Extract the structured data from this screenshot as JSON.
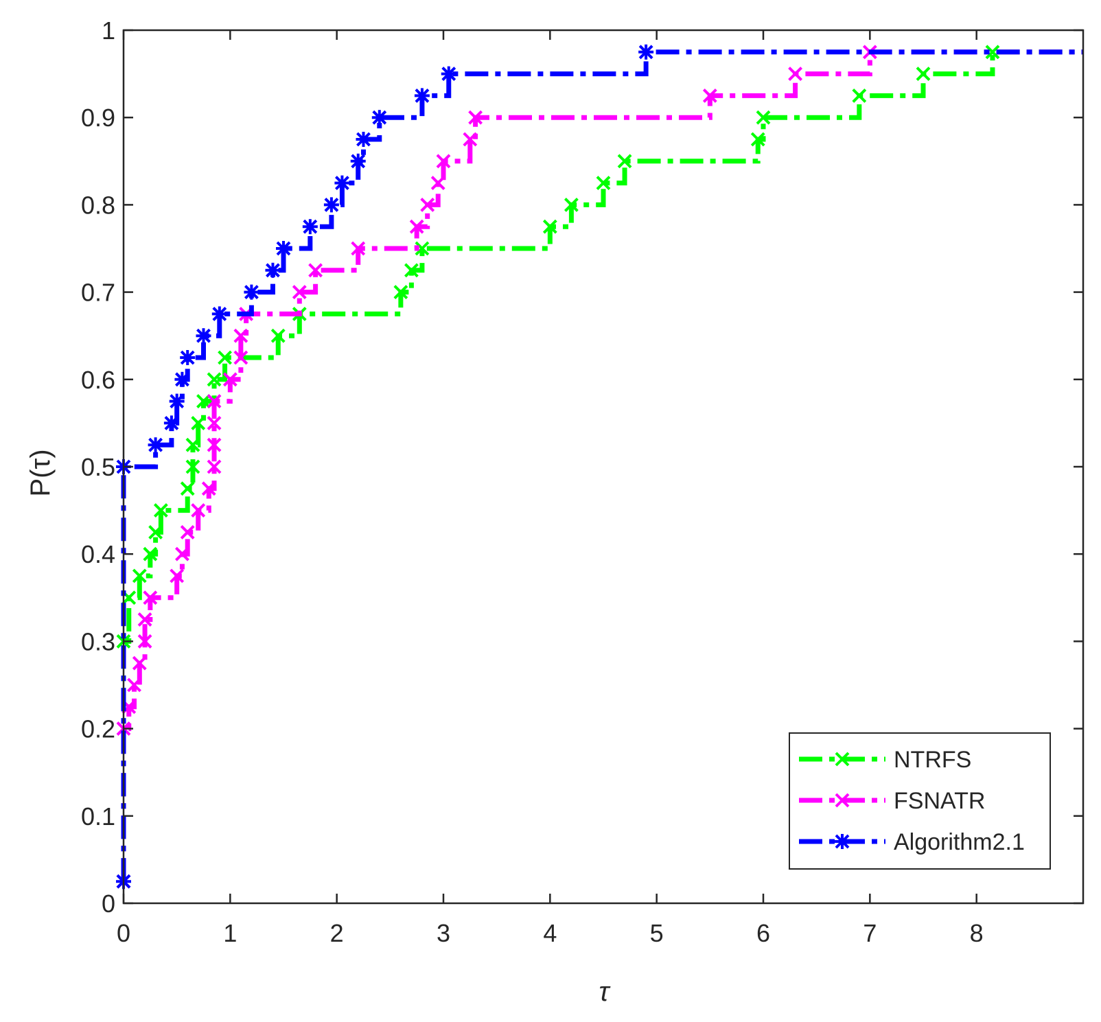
{
  "chart_data": {
    "type": "line",
    "step": true,
    "xlabel": "τ",
    "ylabel": "P(τ)",
    "xlim": [
      0,
      9
    ],
    "ylim": [
      0,
      1
    ],
    "xticks": [
      0,
      1,
      2,
      3,
      4,
      5,
      6,
      7,
      8
    ],
    "yticks": [
      0,
      0.1,
      0.2,
      0.3,
      0.4,
      0.5,
      0.6,
      0.7,
      0.8,
      0.9,
      1
    ],
    "xtick_labels": [
      "0",
      "1",
      "2",
      "3",
      "4",
      "5",
      "6",
      "7",
      "8"
    ],
    "ytick_labels": [
      "0",
      "0.1",
      "0.2",
      "0.3",
      "0.4",
      "0.5",
      "0.6",
      "0.7",
      "0.8",
      "0.9",
      "1"
    ],
    "grid": false,
    "legend_position": "bottom-right",
    "series": [
      {
        "name": "NTRFS",
        "color": "#00ff00",
        "linestyle": "dash-dot",
        "marker": "x",
        "points": [
          [
            0,
            0.025
          ],
          [
            0,
            0.3
          ],
          [
            0.05,
            0.35
          ],
          [
            0.15,
            0.375
          ],
          [
            0.25,
            0.4
          ],
          [
            0.3,
            0.425
          ],
          [
            0.35,
            0.45
          ],
          [
            0.6,
            0.475
          ],
          [
            0.65,
            0.5
          ],
          [
            0.65,
            0.525
          ],
          [
            0.7,
            0.55
          ],
          [
            0.75,
            0.575
          ],
          [
            0.85,
            0.6
          ],
          [
            0.95,
            0.625
          ],
          [
            1.45,
            0.65
          ],
          [
            1.65,
            0.675
          ],
          [
            2.6,
            0.7
          ],
          [
            2.7,
            0.725
          ],
          [
            2.8,
            0.75
          ],
          [
            4.0,
            0.775
          ],
          [
            4.2,
            0.8
          ],
          [
            4.5,
            0.825
          ],
          [
            4.7,
            0.85
          ],
          [
            5.95,
            0.875
          ],
          [
            6.0,
            0.9
          ],
          [
            6.9,
            0.925
          ],
          [
            7.5,
            0.95
          ],
          [
            8.15,
            0.975
          ],
          [
            9.0,
            0.975
          ]
        ]
      },
      {
        "name": "FSNATR",
        "color": "#ff00ff",
        "linestyle": "dash-dot",
        "marker": "x",
        "points": [
          [
            0,
            0.025
          ],
          [
            0,
            0.2
          ],
          [
            0.05,
            0.225
          ],
          [
            0.1,
            0.25
          ],
          [
            0.15,
            0.275
          ],
          [
            0.2,
            0.3
          ],
          [
            0.2,
            0.325
          ],
          [
            0.25,
            0.35
          ],
          [
            0.5,
            0.375
          ],
          [
            0.55,
            0.4
          ],
          [
            0.6,
            0.425
          ],
          [
            0.7,
            0.45
          ],
          [
            0.8,
            0.475
          ],
          [
            0.85,
            0.5
          ],
          [
            0.85,
            0.525
          ],
          [
            0.85,
            0.55
          ],
          [
            0.85,
            0.575
          ],
          [
            1.0,
            0.6
          ],
          [
            1.1,
            0.625
          ],
          [
            1.1,
            0.65
          ],
          [
            1.15,
            0.675
          ],
          [
            1.65,
            0.7
          ],
          [
            1.8,
            0.725
          ],
          [
            2.2,
            0.75
          ],
          [
            2.75,
            0.775
          ],
          [
            2.85,
            0.8
          ],
          [
            2.95,
            0.825
          ],
          [
            3.0,
            0.85
          ],
          [
            3.25,
            0.875
          ],
          [
            3.3,
            0.9
          ],
          [
            5.5,
            0.925
          ],
          [
            6.3,
            0.95
          ],
          [
            7.0,
            0.975
          ],
          [
            9.0,
            0.975
          ]
        ]
      },
      {
        "name": "Algorithm2.1",
        "color": "#0000ff",
        "linestyle": "dash-dot",
        "marker": "*",
        "points": [
          [
            0,
            0.025
          ],
          [
            0,
            0.5
          ],
          [
            0.3,
            0.525
          ],
          [
            0.45,
            0.55
          ],
          [
            0.5,
            0.575
          ],
          [
            0.55,
            0.6
          ],
          [
            0.6,
            0.625
          ],
          [
            0.75,
            0.65
          ],
          [
            0.9,
            0.675
          ],
          [
            1.2,
            0.7
          ],
          [
            1.4,
            0.725
          ],
          [
            1.5,
            0.75
          ],
          [
            1.75,
            0.775
          ],
          [
            1.95,
            0.8
          ],
          [
            2.05,
            0.825
          ],
          [
            2.2,
            0.85
          ],
          [
            2.25,
            0.875
          ],
          [
            2.4,
            0.9
          ],
          [
            2.8,
            0.925
          ],
          [
            3.05,
            0.95
          ],
          [
            4.9,
            0.975
          ],
          [
            9.0,
            0.975
          ]
        ]
      }
    ]
  }
}
